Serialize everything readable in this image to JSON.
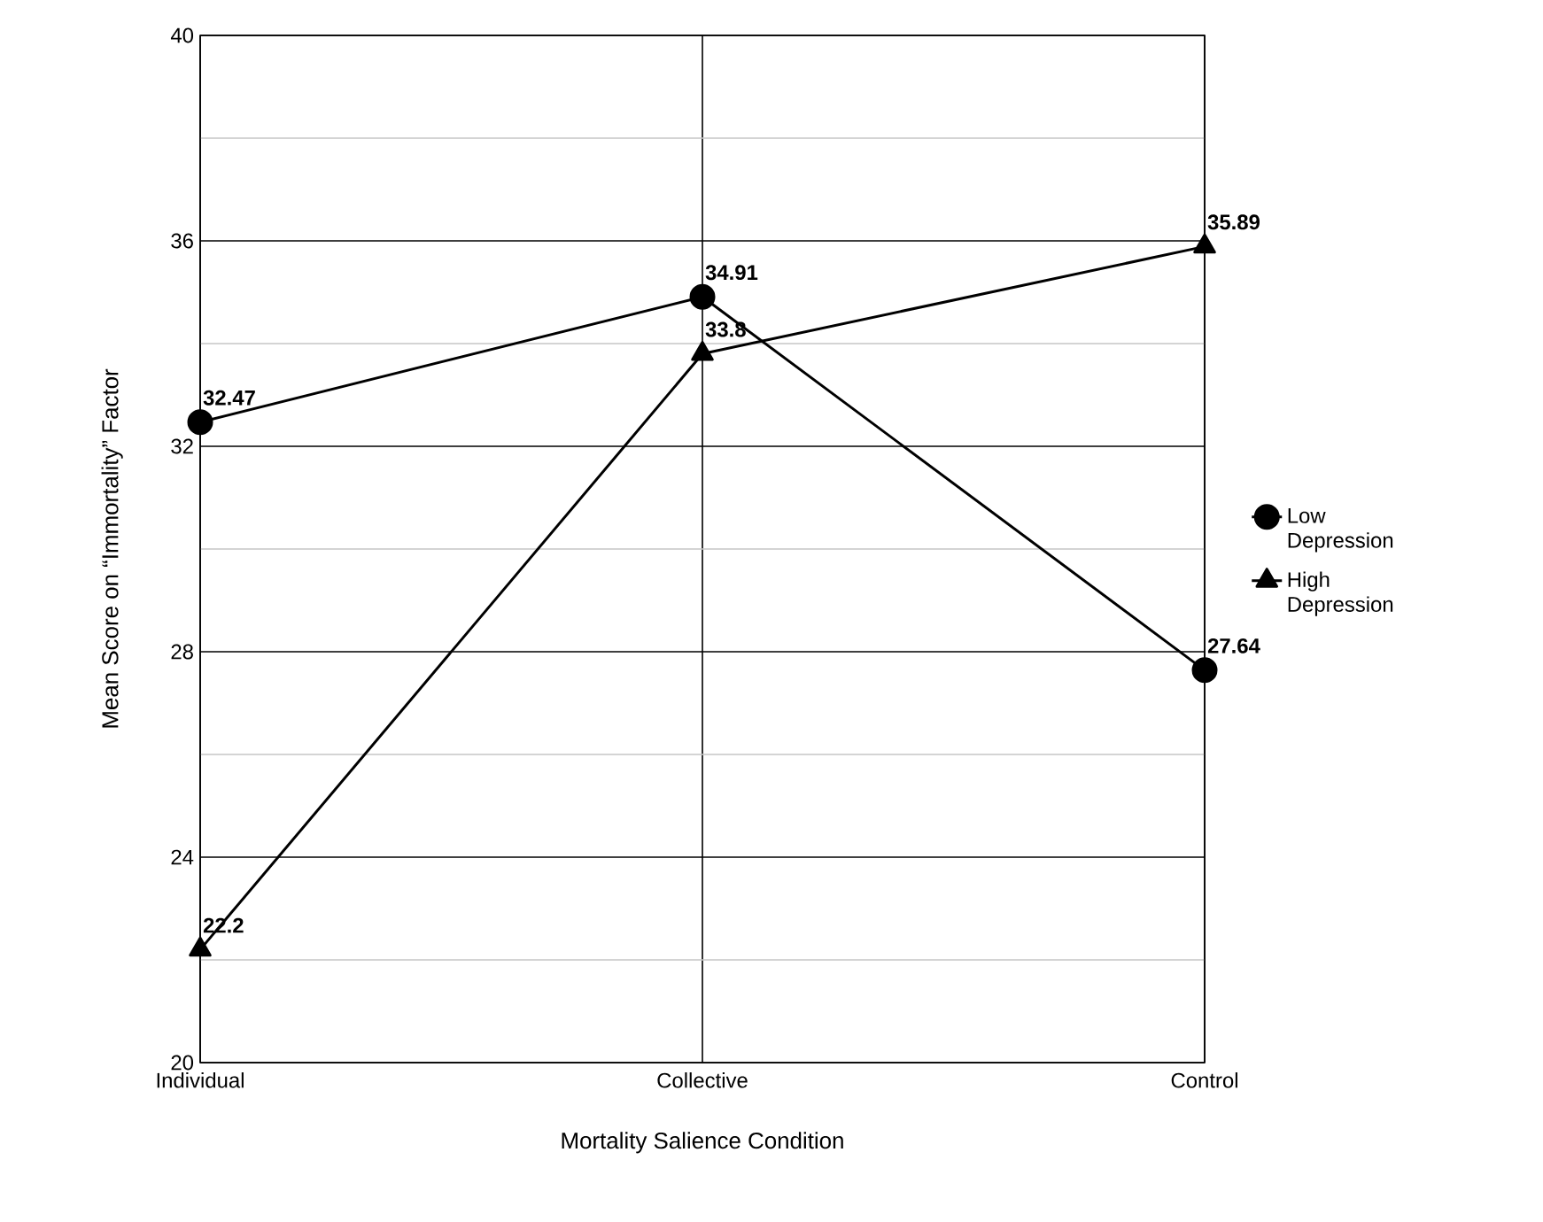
{
  "chart_data": {
    "type": "line",
    "xlabel": "Mortality Salience Condition",
    "ylabel": "Mean Score on “Immortality” Factor",
    "categories": [
      "Individual",
      "Collective",
      "Control"
    ],
    "series": [
      {
        "name": "Low Depression",
        "color": "#000000",
        "marker": "circle",
        "values": [
          32.47,
          34.91,
          27.64
        ]
      },
      {
        "name": "High Depression",
        "color": "#000000",
        "marker": "triangle",
        "values": [
          22.2,
          33.8,
          35.89
        ]
      }
    ],
    "ylim": [
      20,
      40
    ],
    "yticks": [
      20,
      {
        "value": 22,
        "label": null
      },
      24,
      {
        "value": 26,
        "label": null
      },
      28,
      {
        "value": 30,
        "label": null
      },
      32,
      {
        "value": 34,
        "label": null
      },
      36,
      {
        "value": 38,
        "label": null
      },
      40
    ],
    "grid": true,
    "legend": "right",
    "data_labels": true,
    "line_style": "solid"
  }
}
